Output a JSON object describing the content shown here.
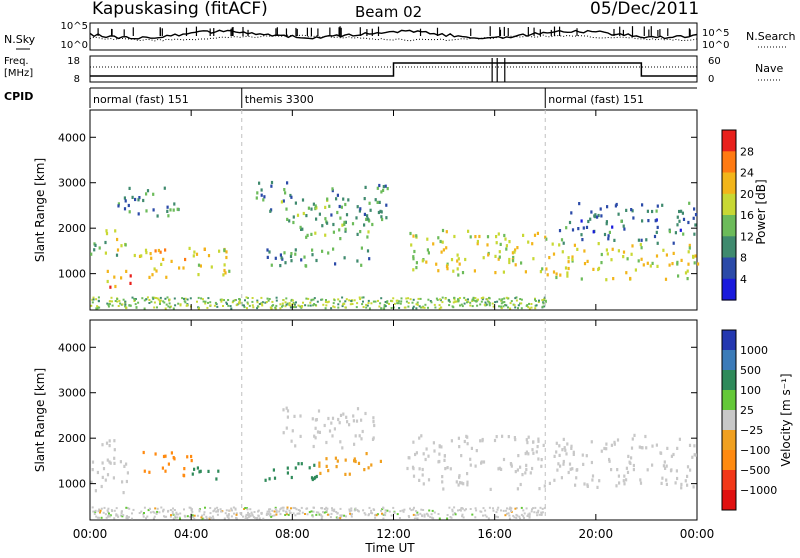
{
  "header": {
    "station": "Kapuskasing (fitACF)",
    "beam": "Beam 02",
    "date": "05/Dec/2011"
  },
  "noise_panel": {
    "left_label": "N.Sky",
    "left_ticks": [
      "10^5",
      "10^0"
    ],
    "right_ticks": [
      "10^5",
      "10^0"
    ],
    "right_label": "N.Search"
  },
  "freq_panel": {
    "left_label_top": "Freq.",
    "left_label_bottom": "[MHz]",
    "left_ticks": [
      "18",
      "8"
    ],
    "right_ticks": [
      "60",
      "0"
    ],
    "right_label": "Nave"
  },
  "cpid": {
    "label": "CPID",
    "segments": [
      {
        "label": "normal (fast) 151",
        "start": 0,
        "end": 6
      },
      {
        "label": "themis 3300",
        "start": 6,
        "end": 18
      },
      {
        "label": "normal (fast) 151",
        "start": 18,
        "end": 24
      }
    ]
  },
  "power_colorbar": {
    "title": "Power [dB]",
    "ticks": [
      "28",
      "24",
      "20",
      "16",
      "12",
      "8",
      "4"
    ],
    "colors": [
      "#e8201c",
      "#ff7a12",
      "#f2b51a",
      "#c8d834",
      "#6cbb5a",
      "#3f8a6e",
      "#2b4aa8",
      "#1a1adc"
    ]
  },
  "velocity_colorbar": {
    "title": "Velocity [m s⁻¹]",
    "ticks": [
      "1000",
      "500",
      "100",
      "25",
      "−25",
      "−100",
      "−500",
      "−1000"
    ],
    "colors": [
      "#2438b0",
      "#3b7bb8",
      "#2f8a5a",
      "#64c838",
      "#c8c8c8",
      "#f0a020",
      "#ff8a10",
      "#f23818",
      "#e01010"
    ]
  },
  "axes": {
    "ylabel": "Slant Range [km]",
    "xlabel": "Time UT",
    "yticks": [
      "4000",
      "3000",
      "2000",
      "1000"
    ],
    "xticks": [
      "00:00",
      "04:00",
      "08:00",
      "12:00",
      "16:00",
      "20:00",
      "00:00"
    ]
  },
  "chart_data": {
    "type": "heatmap",
    "x_unit": "hours UT",
    "xlim": [
      0,
      24
    ],
    "ylim": [
      200,
      4600
    ],
    "y_unit": "km",
    "power_echo_regions": [
      {
        "t0": 0.0,
        "t1": 1.6,
        "r0": 1400,
        "r1": 2000,
        "p": 14
      },
      {
        "t0": 0.2,
        "t1": 1.6,
        "r0": 700,
        "r1": 1100,
        "p": 22
      },
      {
        "t0": 1.5,
        "t1": 5.6,
        "r0": 950,
        "r1": 1600,
        "p": 18
      },
      {
        "t0": 1.0,
        "t1": 3.5,
        "r0": 2300,
        "r1": 3000,
        "p": 8
      },
      {
        "t0": 6.5,
        "t1": 8.0,
        "r0": 2400,
        "r1": 3100,
        "p": 7
      },
      {
        "t0": 7.5,
        "t1": 11.5,
        "r0": 1800,
        "r1": 2700,
        "p": 11
      },
      {
        "t0": 6.0,
        "t1": 11.0,
        "r0": 1200,
        "r1": 1600,
        "p": 9
      },
      {
        "t0": 9.5,
        "t1": 11.8,
        "r0": 2100,
        "r1": 3000,
        "p": 8
      },
      {
        "t0": 12.5,
        "t1": 18.0,
        "r0": 1000,
        "r1": 2000,
        "p": 16
      },
      {
        "t0": 18.0,
        "t1": 24.0,
        "r0": 900,
        "r1": 1700,
        "p": 17
      },
      {
        "t0": 18.5,
        "t1": 24.0,
        "r0": 1700,
        "r1": 2600,
        "p": 6
      }
    ],
    "velocity_echo_regions": [
      {
        "t0": 0.0,
        "t1": 1.5,
        "r0": 800,
        "r1": 2000,
        "v": 0
      },
      {
        "t0": 2.0,
        "t1": 4.0,
        "r0": 1200,
        "r1": 1750,
        "v": -300
      },
      {
        "t0": 4.0,
        "t1": 5.2,
        "r0": 1050,
        "r1": 1450,
        "v": 200
      },
      {
        "t0": 7.5,
        "t1": 11.2,
        "r0": 1800,
        "r1": 2700,
        "v": 0
      },
      {
        "t0": 6.5,
        "t1": 9.0,
        "r0": 1100,
        "r1": 1500,
        "v": 200
      },
      {
        "t0": 9.0,
        "t1": 11.5,
        "r0": 1200,
        "r1": 1700,
        "v": -80
      },
      {
        "t0": 12.5,
        "t1": 24.0,
        "r0": 900,
        "r1": 2100,
        "v": 0
      }
    ]
  }
}
